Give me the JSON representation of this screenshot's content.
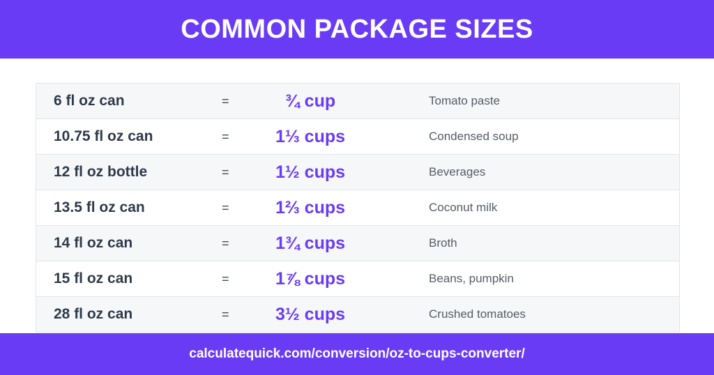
{
  "header": {
    "title": "COMMON PACKAGE SIZES"
  },
  "rows": [
    {
      "size": "6 fl oz can",
      "eq": "=",
      "cups": "¾ cup",
      "use": "Tomato paste"
    },
    {
      "size": "10.75 fl oz can",
      "eq": "=",
      "cups": "1⅓ cups",
      "use": "Condensed soup"
    },
    {
      "size": "12 fl oz bottle",
      "eq": "=",
      "cups": "1½ cups",
      "use": "Beverages"
    },
    {
      "size": "13.5 fl oz can",
      "eq": "=",
      "cups": "1⅔ cups",
      "use": "Coconut milk"
    },
    {
      "size": "14 fl oz can",
      "eq": "=",
      "cups": "1¾ cups",
      "use": "Broth"
    },
    {
      "size": "15 fl oz can",
      "eq": "=",
      "cups": "1⅞ cups",
      "use": "Beans, pumpkin"
    },
    {
      "size": "28 fl oz can",
      "eq": "=",
      "cups": "3½ cups",
      "use": "Crushed tomatoes"
    }
  ],
  "footer": {
    "url": "calculatequick.com/conversion/oz-to-cups-converter/"
  },
  "colors": {
    "accent": "#6a3bf5",
    "text_dark": "#2e3a4a",
    "row_alt": "#f6f7f9"
  }
}
